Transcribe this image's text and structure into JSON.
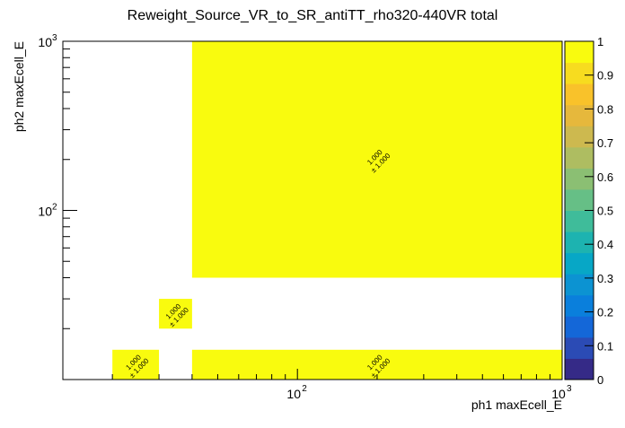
{
  "chart_data": {
    "type": "heatmap",
    "title": "Reweight_Source_VR_to_SR_antiTT_rho320-440VR total",
    "xlabel": "ph1 maxEcell_E",
    "ylabel": "ph2 maxEcell_E",
    "x_scale": "log",
    "y_scale": "log",
    "xlim": [
      13,
      1000
    ],
    "ylim": [
      10,
      1000
    ],
    "x_tick_labels": [
      {
        "value": 100,
        "base": "10",
        "exp": "2"
      },
      {
        "value": 1000,
        "base": "10",
        "exp": "3"
      }
    ],
    "y_tick_labels": [
      {
        "value": 100,
        "base": "10",
        "exp": "2"
      },
      {
        "value": 1000,
        "base": "10",
        "exp": "3"
      }
    ],
    "cells": [
      {
        "x": [
          40,
          1000
        ],
        "y": [
          40,
          1000
        ],
        "value": 1.0,
        "label": "1.000",
        "error": "± 1.000"
      },
      {
        "x": [
          30,
          40
        ],
        "y": [
          20,
          30
        ],
        "value": 1.0,
        "label": "1.000",
        "error": "± 1.000"
      },
      {
        "x": [
          20,
          30
        ],
        "y": [
          10,
          15
        ],
        "value": 1.0,
        "label": "1.000",
        "error": "± 1.000"
      },
      {
        "x": [
          40,
          1000
        ],
        "y": [
          10,
          15
        ],
        "value": 1.0,
        "label": "1.000",
        "error": "± 1.000"
      }
    ],
    "colorbar": {
      "min": 0,
      "max": 1,
      "tick_labels": [
        "0",
        "0.1",
        "0.2",
        "0.3",
        "0.4",
        "0.5",
        "0.6",
        "0.7",
        "0.8",
        "0.9",
        "1"
      ],
      "colors": [
        "#352a87",
        "#2b4bb5",
        "#1467d8",
        "#0a7fdc",
        "#0c93d2",
        "#07a7c6",
        "#1db3b0",
        "#3fbc9a",
        "#66bf86",
        "#8bbf73",
        "#aebd61",
        "#cdb94f",
        "#e6b83c",
        "#f9c22a",
        "#f7dc1f",
        "#f9fb0e"
      ]
    }
  }
}
